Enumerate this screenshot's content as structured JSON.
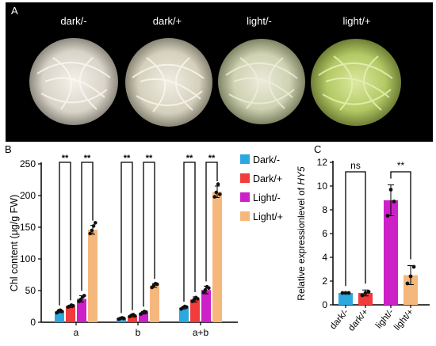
{
  "panel_a": {
    "letter": "A",
    "labels": [
      "dark/-",
      "dark/+",
      "light/-",
      "light/+"
    ]
  },
  "colors": {
    "dark_minus": "#2ba8e0",
    "dark_plus": "#f23b3b",
    "light_minus": "#cc20c8",
    "light_plus": "#f6b77c",
    "moss_pale": "#ece7de",
    "moss_green": "#b9cf6a"
  },
  "chart_data": [
    {
      "id": "B",
      "type": "bar",
      "panel_letter": "B",
      "ylabel": "Chl content (μg/g FW)",
      "ylim": [
        0,
        250
      ],
      "yticks": [
        0,
        50,
        100,
        150,
        200,
        250
      ],
      "categories": [
        "a",
        "b",
        "a+b"
      ],
      "legend_placement": "right",
      "series": [
        {
          "name": "Dark/-",
          "color": "#2ba8e0",
          "values": [
            17,
            6,
            23
          ],
          "errors": [
            2,
            1,
            2
          ],
          "points": [
            [
              15,
              18,
              19,
              17
            ],
            [
              5,
              6,
              7,
              6
            ],
            [
              21,
              23,
              25,
              24
            ]
          ]
        },
        {
          "name": "Dark/+",
          "color": "#f23b3b",
          "values": [
            25,
            10,
            36
          ],
          "errors": [
            2,
            1.5,
            4
          ],
          "points": [
            [
              24,
              25,
              27,
              26
            ],
            [
              9,
              11,
              12,
              10
            ],
            [
              33,
              36,
              39,
              37
            ]
          ]
        },
        {
          "name": "Light/-",
          "color": "#cc20c8",
          "values": [
            37,
            15,
            51
          ],
          "errors": [
            5,
            2,
            6
          ],
          "points": [
            [
              33,
              36,
              40,
              42
            ],
            [
              13,
              15,
              17,
              16
            ],
            [
              47,
              51,
              56,
              54
            ]
          ]
        },
        {
          "name": "Light/+",
          "color": "#f6b77c",
          "values": [
            146,
            58,
            206
          ],
          "errors": [
            7,
            3,
            9
          ],
          "points": [
            [
              140,
              145,
              152,
              157
            ],
            [
              55,
              58,
              61,
              60
            ],
            [
              198,
              205,
              218,
              202
            ]
          ]
        }
      ],
      "significance": [
        {
          "category": 0,
          "from": 0,
          "to": 1,
          "label": "**",
          "y": 250
        },
        {
          "category": 0,
          "from": 2,
          "to": 3,
          "label": "**",
          "y": 250
        },
        {
          "category": 1,
          "from": 0,
          "to": 1,
          "label": "**",
          "y": 250
        },
        {
          "category": 1,
          "from": 2,
          "to": 3,
          "label": "**",
          "y": 250
        },
        {
          "category": 2,
          "from": 0,
          "to": 1,
          "label": "**",
          "y": 250
        },
        {
          "category": 2,
          "from": 2,
          "to": 3,
          "label": "**",
          "y": 250
        }
      ]
    },
    {
      "id": "C",
      "type": "bar",
      "panel_letter": "C",
      "ylabel_prefix": "Relative expressionlevel of ",
      "ylabel_gene": "HY5",
      "ylim": [
        0,
        12
      ],
      "yticks": [
        0,
        2,
        4,
        6,
        8,
        10,
        12
      ],
      "categories": [
        "dark/-",
        "dark/+",
        "light/-",
        "light/+"
      ],
      "colors": [
        "#2ba8e0",
        "#f23b3b",
        "#cc20c8",
        "#f6b77c"
      ],
      "values": [
        1.0,
        1.0,
        8.8,
        2.5
      ],
      "errors": [
        0.05,
        0.25,
        1.3,
        0.8
      ],
      "points": [
        [
          1.0,
          1.0,
          1.0
        ],
        [
          0.8,
          1.0,
          1.1
        ],
        [
          7.5,
          9.7,
          8.7
        ],
        [
          1.8,
          2.4,
          3.2
        ]
      ],
      "significance": [
        {
          "from": 0,
          "to": 1,
          "label": "ns",
          "y": 11.2
        },
        {
          "from": 2,
          "to": 3,
          "label": "**",
          "y": 11.2
        }
      ]
    }
  ]
}
